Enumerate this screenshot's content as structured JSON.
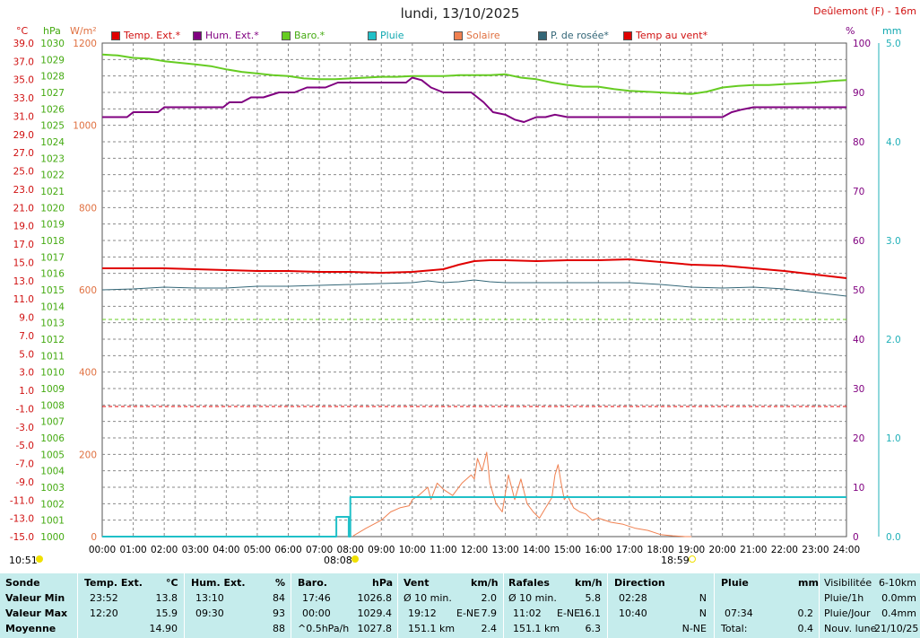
{
  "title": "lundi, 13/10/2025",
  "station": "Deûlemont (F) - 16m",
  "units": {
    "temp": "°C",
    "baro": "hPa",
    "solar": "W/m²",
    "hum": "%",
    "rain": "mm"
  },
  "legend": [
    {
      "label": "Temp. Ext.*",
      "color": "#e00000",
      "text_color": "#d01010"
    },
    {
      "label": "Hum. Ext.*",
      "color": "#800080",
      "text_color": "#800080"
    },
    {
      "label": "Baro.*",
      "color": "#66cc22",
      "text_color": "#44aa11"
    },
    {
      "label": "Pluie",
      "color": "#20c0c8",
      "text_color": "#10a8b0"
    },
    {
      "label": "Solaire",
      "color": "#f08050",
      "text_color": "#e07040"
    },
    {
      "label": "P. de rosée*",
      "color": "#336677",
      "text_color": "#336677"
    },
    {
      "label": "Temp au vent*",
      "color": "#e00000",
      "text_color": "#d01010"
    }
  ],
  "bottom": {
    "sunrise": "08:08",
    "sunset": "18:59",
    "now": "10:51"
  },
  "chart_data": {
    "type": "line",
    "x_ticks": [
      "00:00",
      "01:00",
      "02:00",
      "03:00",
      "04:00",
      "05:00",
      "06:00",
      "07:00",
      "08:00",
      "09:00",
      "10:00",
      "11:00",
      "12:00",
      "13:00",
      "14:00",
      "15:00",
      "16:00",
      "17:00",
      "18:00",
      "19:00",
      "20:00",
      "21:00",
      "22:00",
      "23:00",
      "24:00"
    ],
    "axes": {
      "temp": {
        "label": "°C",
        "ticks": [
          "39.0",
          "37.0",
          "35.0",
          "33.0",
          "31.0",
          "29.0",
          "27.0",
          "25.0",
          "23.0",
          "21.0",
          "19.0",
          "17.0",
          "15.0",
          "13.0",
          "11.0",
          "9.0",
          "7.0",
          "5.0",
          "3.0",
          "1.0",
          "-1.0",
          "-3.0",
          "-5.0",
          "-7.0",
          "-9.0",
          "-11.0",
          "-13.0",
          "-15.0"
        ],
        "range": [
          -15,
          40
        ],
        "color": "#d01010"
      },
      "baro": {
        "label": "hPa",
        "ticks": [
          "1030",
          "1029",
          "1028",
          "1027",
          "1026",
          "1025",
          "1024",
          "1023",
          "1022",
          "1021",
          "1020",
          "1019",
          "1018",
          "1017",
          "1016",
          "1015",
          "1014",
          "1013",
          "1012",
          "1011",
          "1010",
          "1009",
          "1008",
          "1007",
          "1006",
          "1005",
          "1004",
          "1003",
          "1002",
          "1001",
          "1000"
        ],
        "range": [
          1000,
          1030
        ],
        "color": "#44aa11"
      },
      "solar": {
        "label": "W/m²",
        "ticks": [
          "1200",
          "1000",
          "800",
          "600",
          "400",
          "200",
          "0"
        ],
        "range": [
          0,
          1200
        ],
        "color": "#e07040"
      },
      "hum": {
        "label": "%",
        "ticks": [
          "100",
          "90",
          "80",
          "70",
          "60",
          "50",
          "40",
          "30",
          "20",
          "10",
          "0"
        ],
        "range": [
          0,
          100
        ],
        "color": "#800080"
      },
      "rain": {
        "label": "mm",
        "ticks": [
          "5.0",
          "4.0",
          "3.0",
          "2.0",
          "1.0",
          "0.0"
        ],
        "range": [
          0,
          5
        ],
        "color": "#20b0b8"
      }
    },
    "series": [
      {
        "name": "Baro.*",
        "axis": "baro",
        "color": "#66cc22",
        "x": [
          0,
          0.5,
          1,
          1.5,
          2,
          2.5,
          3,
          3.5,
          4,
          4.5,
          5,
          5.5,
          6,
          6.5,
          7,
          7.5,
          8,
          8.5,
          9,
          9.5,
          10,
          10.5,
          11,
          11.5,
          12,
          12.5,
          13,
          13.5,
          14,
          14.5,
          15,
          15.5,
          16,
          16.5,
          17,
          17.5,
          18,
          18.5,
          19,
          19.5,
          20,
          20.5,
          21,
          21.5,
          22,
          22.5,
          23,
          23.5,
          24
        ],
        "y": [
          1029.3,
          1029.25,
          1029.1,
          1029.05,
          1028.9,
          1028.8,
          1028.7,
          1028.6,
          1028.4,
          1028.25,
          1028.15,
          1028.05,
          1028.0,
          1027.85,
          1027.8,
          1027.8,
          1027.85,
          1027.9,
          1027.95,
          1027.95,
          1028.0,
          1028.0,
          1028.0,
          1028.05,
          1028.05,
          1028.05,
          1028.1,
          1027.9,
          1027.8,
          1027.6,
          1027.45,
          1027.35,
          1027.35,
          1027.2,
          1027.1,
          1027.05,
          1027.0,
          1026.95,
          1026.9,
          1027.05,
          1027.3,
          1027.4,
          1027.45,
          1027.45,
          1027.5,
          1027.55,
          1027.6,
          1027.7,
          1027.75
        ]
      },
      {
        "name": "Hum. Ext.*",
        "axis": "hum",
        "color": "#800080",
        "x": [
          0,
          0.8,
          1.0,
          1.8,
          2.0,
          3.0,
          3.9,
          4.1,
          4.5,
          4.8,
          5.2,
          5.7,
          6.2,
          6.6,
          7.2,
          7.6,
          8.0,
          8.7,
          9.3,
          9.8,
          10.0,
          10.3,
          10.6,
          11.0,
          11.3,
          11.9,
          12.3,
          12.6,
          13.0,
          13.3,
          13.6,
          14.0,
          14.3,
          14.6,
          15.0,
          15.5,
          16.0,
          17.0,
          18.0,
          19.0,
          20.0,
          20.3,
          20.6,
          21.0,
          22.0,
          23.0,
          24.0
        ],
        "y": [
          85,
          85,
          86,
          86,
          87,
          87,
          87,
          88,
          88,
          89,
          89,
          90,
          90,
          91,
          91,
          92,
          92,
          92,
          92,
          92,
          93,
          92.5,
          91,
          90,
          90,
          90,
          88,
          86,
          85.5,
          84.5,
          84,
          85,
          85,
          85.5,
          85,
          85,
          85,
          85,
          85,
          85,
          85,
          86,
          86.5,
          87,
          87,
          87,
          87
        ]
      },
      {
        "name": "Temp. Ext.*",
        "axis": "temp",
        "color": "#e00000",
        "x": [
          0,
          1,
          2,
          3,
          4,
          5,
          6,
          7,
          8,
          9,
          10,
          11,
          11.5,
          12,
          12.5,
          13,
          14,
          15,
          16,
          17,
          18,
          19,
          20,
          21,
          22,
          23,
          24
        ],
        "y": [
          14.9,
          14.9,
          14.9,
          14.8,
          14.7,
          14.6,
          14.6,
          14.5,
          14.5,
          14.4,
          14.5,
          14.8,
          15.3,
          15.7,
          15.8,
          15.8,
          15.7,
          15.8,
          15.8,
          15.9,
          15.6,
          15.3,
          15.2,
          14.9,
          14.6,
          14.2,
          13.8
        ]
      },
      {
        "name": "P. de rosée*",
        "axis": "temp",
        "color": "#336677",
        "x": [
          0,
          1,
          2,
          3,
          4,
          5,
          6,
          7,
          8,
          9,
          10,
          10.5,
          11,
          11.5,
          12,
          12.5,
          13,
          14,
          15,
          16,
          17,
          18,
          19,
          20,
          21,
          22,
          23,
          24
        ],
        "y": [
          12.5,
          12.6,
          12.8,
          12.7,
          12.7,
          12.9,
          12.9,
          13.0,
          13.1,
          13.2,
          13.3,
          13.5,
          13.3,
          13.4,
          13.6,
          13.4,
          13.3,
          13.3,
          13.3,
          13.3,
          13.3,
          13.1,
          12.8,
          12.7,
          12.8,
          12.6,
          12.2,
          11.8
        ]
      },
      {
        "name": "Solaire",
        "axis": "solar",
        "color": "#f08050",
        "x": [
          8.1,
          8.5,
          9.0,
          9.3,
          9.6,
          9.9,
          10.0,
          10.2,
          10.5,
          10.6,
          10.8,
          11.0,
          11.3,
          11.6,
          11.9,
          12.0,
          12.1,
          12.25,
          12.4,
          12.5,
          12.7,
          12.9,
          13.1,
          13.3,
          13.5,
          13.7,
          13.9,
          14.1,
          14.3,
          14.5,
          14.6,
          14.7,
          14.8,
          14.9,
          15.0,
          15.2,
          15.4,
          15.6,
          15.8,
          16.0,
          16.4,
          16.8,
          17.2,
          17.6,
          18.0,
          18.4,
          18.8,
          19.0
        ],
        "y": [
          2,
          20,
          40,
          60,
          70,
          75,
          90,
          100,
          120,
          90,
          130,
          115,
          100,
          130,
          150,
          140,
          190,
          160,
          205,
          130,
          80,
          60,
          150,
          90,
          140,
          80,
          60,
          45,
          70,
          95,
          150,
          175,
          130,
          90,
          100,
          70,
          60,
          55,
          40,
          45,
          35,
          30,
          20,
          15,
          5,
          2,
          0,
          0
        ]
      },
      {
        "name": "Pluie",
        "axis": "rain",
        "color": "#20c0c8",
        "x": [
          0,
          7.55,
          7.55,
          7.95,
          7.95,
          8.0,
          8.0,
          24
        ],
        "y": [
          0,
          0,
          0.2,
          0.2,
          0,
          0,
          0.4,
          0.4
        ]
      }
    ],
    "grid": true,
    "reference_lines": [
      {
        "axis": "temp",
        "value": 9.2,
        "color": "#66cc22",
        "style": "dashed"
      },
      {
        "axis": "temp",
        "value": -0.5,
        "color": "#e00000",
        "style": "dashed"
      }
    ]
  },
  "table": {
    "row_labels": [
      "Sonde",
      "Valeur Min",
      "Valeur Max",
      "Moyenne"
    ],
    "temp": {
      "header": "Temp. Ext.",
      "unit": "°C",
      "rows": [
        [
          "23:52",
          "13.8"
        ],
        [
          "12:20",
          "15.9"
        ],
        [
          "",
          "14.90"
        ]
      ]
    },
    "hum": {
      "header": "Hum. Ext.",
      "unit": "%",
      "rows": [
        [
          "13:10",
          "84"
        ],
        [
          "09:30",
          "93"
        ],
        [
          "",
          "88"
        ]
      ]
    },
    "baro": {
      "header": "Baro.",
      "unit": "hPa",
      "rows": [
        [
          "17:46",
          "1026.8"
        ],
        [
          "00:00",
          "1029.4"
        ],
        [
          "^0.5hPa/h",
          "1027.8"
        ]
      ]
    },
    "vent": {
      "header": "Vent",
      "unit": "km/h",
      "rows": [
        [
          "Ø 10 min.",
          "",
          "2.0"
        ],
        [
          "19:12",
          "E-NE",
          "7.9"
        ],
        [
          "151.1 km",
          "",
          "2.4"
        ]
      ]
    },
    "rafales": {
      "header": "Rafales",
      "unit": "km/h",
      "rows": [
        [
          "Ø 10 min.",
          "",
          "5.8"
        ],
        [
          "11:02",
          "E-NE",
          "16.1"
        ],
        [
          "151.1 km",
          "",
          "6.3"
        ]
      ]
    },
    "direction": {
      "header": "Direction",
      "rows": [
        [
          "02:28",
          "N"
        ],
        [
          "10:40",
          "N"
        ],
        [
          "",
          "N-NE"
        ]
      ]
    },
    "pluie": {
      "header": "Pluie",
      "unit": "mm",
      "rows": [
        [
          "",
          ""
        ],
        [
          "07:34",
          "0.2"
        ],
        [
          "Total:",
          "0.4"
        ]
      ]
    },
    "misc": {
      "rows": [
        [
          "Visibilitée",
          "6-10km"
        ],
        [
          "Pluie/1h",
          "0.0mm"
        ],
        [
          "Pluie/Jour",
          "0.4mm"
        ],
        [
          "Nouv. lune",
          "21/10/25"
        ]
      ]
    }
  }
}
